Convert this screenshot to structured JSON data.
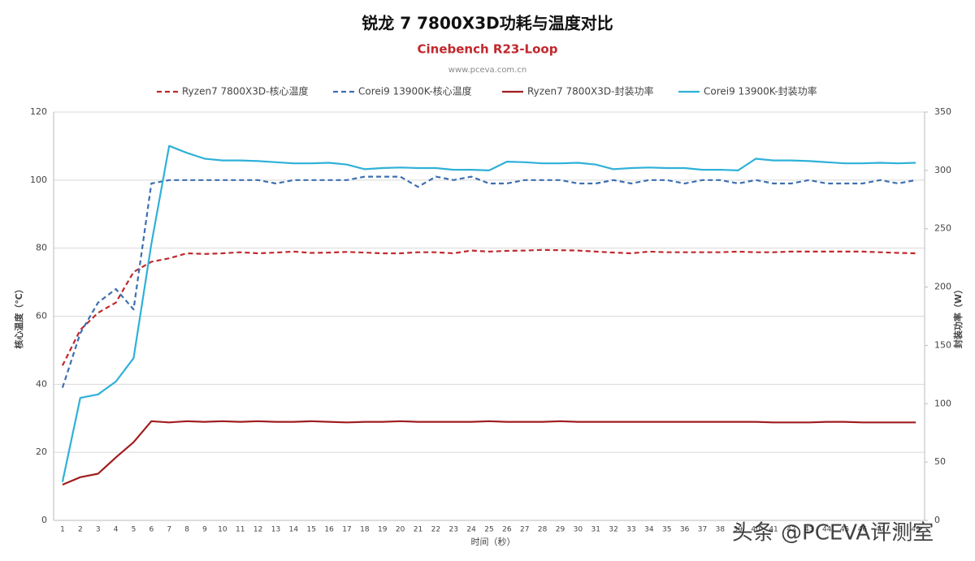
{
  "chart_data": {
    "type": "line",
    "title": "锐龙 7 7800X3D功耗与温度对比",
    "subtitle": "Cinebench R23-Loop",
    "source": "www.pceva.com.cn",
    "watermark": "头条 @PCEVA评测室",
    "x_label": "时间（秒）",
    "y_label": "核心温度（℃）",
    "y2_label": "封装功率（W）",
    "categories": [
      1,
      2,
      3,
      4,
      5,
      6,
      7,
      8,
      9,
      10,
      11,
      12,
      13,
      14,
      15,
      16,
      17,
      18,
      19,
      20,
      21,
      22,
      23,
      24,
      25,
      26,
      27,
      28,
      29,
      30,
      31,
      32,
      33,
      34,
      35,
      36,
      37,
      38,
      39,
      40,
      41,
      42,
      43,
      44,
      45,
      46,
      47,
      48,
      49
    ],
    "ylim": [
      0,
      120
    ],
    "yticks": [
      0,
      20,
      40,
      60,
      80,
      100,
      120
    ],
    "y2lim": [
      0,
      350
    ],
    "y2ticks": [
      0,
      50,
      100,
      150,
      200,
      250,
      300,
      350
    ],
    "grid": true,
    "series": [
      {
        "name": "Ryzen7 7800X3D-核心温度",
        "color": "#c0282d",
        "style": "dashed",
        "axis": "y",
        "values": [
          45.5,
          56,
          61,
          64,
          73,
          76,
          77,
          78.5,
          78.3,
          78.5,
          78.8,
          78.5,
          78.7,
          79,
          78.6,
          78.7,
          78.9,
          78.7,
          78.5,
          78.5,
          78.8,
          78.8,
          78.5,
          79.3,
          79,
          79.2,
          79.3,
          79.5,
          79.4,
          79.3,
          79,
          78.7,
          78.5,
          79,
          78.8,
          78.8,
          78.8,
          78.8,
          79,
          78.8,
          78.8,
          79,
          79,
          79,
          79,
          79,
          78.8,
          78.6,
          78.5
        ]
      },
      {
        "name": "Corei9 13900K-核心温度",
        "color": "#3c6fb0",
        "style": "dashed",
        "axis": "y",
        "values": [
          39,
          55,
          64,
          68,
          62,
          99,
          100,
          100,
          100,
          100,
          100,
          100,
          99,
          100,
          100,
          100,
          100,
          101,
          101,
          101,
          98,
          101,
          100,
          101,
          99,
          99,
          100,
          100,
          100,
          99,
          99,
          100,
          99,
          100,
          100,
          99,
          100,
          100,
          99,
          100,
          99,
          99,
          100,
          99,
          99,
          99,
          100,
          99,
          100
        ]
      },
      {
        "name": "Ryzen7 7800X3D-封装功率",
        "color": "#a01d20",
        "style": "solid",
        "axis": "y2",
        "values": [
          30.6,
          37,
          40,
          54,
          67,
          85,
          84,
          85,
          84.5,
          85,
          84.5,
          85,
          84.5,
          84.5,
          85,
          84.5,
          84,
          84.5,
          84.5,
          85,
          84.5,
          84.5,
          84.5,
          84.5,
          85,
          84.5,
          84.5,
          84.5,
          85,
          84.5,
          84.5,
          84.5,
          84.5,
          84.5,
          84.5,
          84.5,
          84.5,
          84.5,
          84.5,
          84.5,
          84,
          84,
          84,
          84.5,
          84.5,
          84,
          84,
          84,
          84
        ]
      },
      {
        "name": "Corei9 13900K-封装功率",
        "color": "#2fb1d8",
        "style": "solid",
        "axis": "y2",
        "values": [
          33,
          105,
          108,
          119,
          139,
          237,
          321,
          315,
          310,
          308.5,
          308.5,
          308,
          307,
          306,
          306,
          306.5,
          305,
          301,
          302,
          302.5,
          302,
          302,
          300.5,
          300.5,
          300,
          307.5,
          307,
          306,
          306,
          306.5,
          305,
          301,
          302,
          302.5,
          302,
          302,
          300.5,
          300.5,
          300,
          310,
          308.5,
          308.5,
          308,
          307,
          306,
          306,
          306.5,
          306,
          306.5
        ]
      }
    ]
  }
}
